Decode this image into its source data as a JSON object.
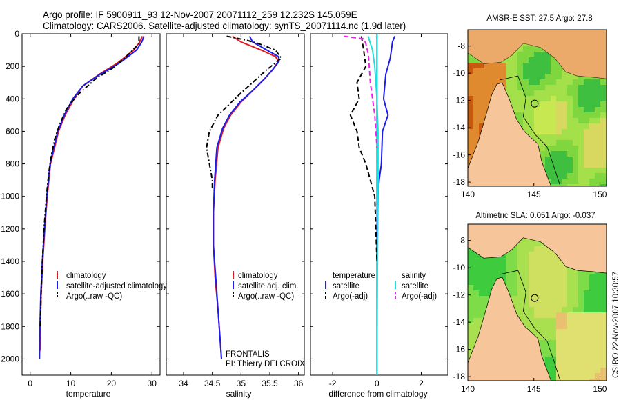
{
  "title_line1": "Argo profile: IF 5900911_93 12-Nov-2007 20071112_259 12.232S 145.059E",
  "title_line2": "Climatology: CARS2006. Satellite-adjusted climatology: synTS_20071114.nc (1.9d later)",
  "footer": "CSIRO 22-Nov-2007 10:30:57",
  "panel_notes": {
    "frontalis": "FRONTALIS",
    "pi": "PI: Thierry DELCROIX"
  },
  "colors": {
    "climatology": "#e31a1c",
    "satellite": "#1c1cf0",
    "argo": "#000000",
    "sal_satellite": "#22dddd",
    "sal_argo": "#ee22ee",
    "land": "#f6c59a"
  },
  "chart_data": [
    {
      "type": "line",
      "name": "temperature-profile",
      "xlabel": "temperature",
      "ylabel": "",
      "xlim": [
        -2,
        32
      ],
      "ylim": [
        2100,
        0
      ],
      "xticks": [
        "0",
        "10",
        "20",
        "30"
      ],
      "yticks": [
        "0",
        "200",
        "400",
        "600",
        "800",
        "1000",
        "1200",
        "1400",
        "1600",
        "1800",
        "2000"
      ],
      "legend": [
        "climatology",
        "satellite-adjusted climatology",
        "Argo(..raw -QC)"
      ],
      "series": [
        {
          "name": "climatology",
          "style": "solid",
          "color": "#e31a1c",
          "x": [
            27.6,
            27.0,
            25.5,
            21.5,
            17.0,
            13.0,
            10.8,
            8.6,
            7.0,
            6.0,
            5.0,
            4.2,
            3.6,
            3.1,
            2.7,
            2.5,
            2.4
          ],
          "y": [
            15,
            50,
            100,
            180,
            250,
            320,
            400,
            500,
            600,
            700,
            800,
            1000,
            1200,
            1400,
            1600,
            1800,
            1950
          ]
        },
        {
          "name": "satellite-adjusted climatology",
          "style": "solid",
          "color": "#1c1cf0",
          "x": [
            28.0,
            27.5,
            26.2,
            22.0,
            17.2,
            13.0,
            10.5,
            8.4,
            6.8,
            5.8,
            4.9,
            4.1,
            3.5,
            3.0,
            2.6,
            2.4,
            2.3
          ],
          "y": [
            15,
            50,
            100,
            180,
            250,
            320,
            400,
            500,
            600,
            700,
            800,
            1000,
            1200,
            1400,
            1600,
            1800,
            2000
          ]
        },
        {
          "name": "Argo(..raw -QC)",
          "style": "dashdot",
          "color": "#000000",
          "x": [
            26.8,
            26.8,
            24.5,
            21.0,
            16.0,
            11.5,
            9.0,
            7.2,
            6.0,
            5.2,
            4.6,
            4.0,
            3.4,
            3.0,
            2.7,
            2.5
          ],
          "y": [
            15,
            60,
            120,
            200,
            280,
            380,
            460,
            560,
            650,
            750,
            850,
            1000,
            1200,
            1400,
            1600,
            1800
          ]
        }
      ]
    },
    {
      "type": "line",
      "name": "salinity-profile",
      "xlabel": "salinity",
      "ylabel": "",
      "xlim": [
        33.7,
        36.1
      ],
      "ylim": [
        2100,
        0
      ],
      "xticks": [
        "34",
        "34.5",
        "35",
        "35.5",
        "36"
      ],
      "legend": [
        "climatology",
        "satellite adj. clim.",
        "Argo(..raw -QC)"
      ],
      "series": [
        {
          "name": "climatology",
          "style": "solid",
          "color": "#e31a1c",
          "x": [
            34.85,
            35.0,
            35.35,
            35.6,
            35.65,
            35.55,
            35.4,
            35.2,
            35.0,
            34.82,
            34.7,
            34.6,
            34.55,
            34.52,
            34.52,
            34.55,
            34.6,
            34.63,
            34.65,
            34.66
          ],
          "y": [
            15,
            50,
            100,
            140,
            170,
            220,
            280,
            350,
            420,
            500,
            580,
            700,
            900,
            1100,
            1300,
            1500,
            1700,
            1850,
            1950,
            2000
          ]
        },
        {
          "name": "satellite adj. clim.",
          "style": "solid",
          "color": "#1c1cf0",
          "x": [
            35.15,
            35.2,
            35.45,
            35.65,
            35.66,
            35.55,
            35.4,
            35.2,
            34.98,
            34.8,
            34.68,
            34.58,
            34.54,
            34.52,
            34.52,
            34.56,
            34.6,
            34.63,
            34.65,
            34.66
          ],
          "y": [
            15,
            50,
            100,
            140,
            170,
            220,
            280,
            350,
            420,
            500,
            580,
            700,
            900,
            1100,
            1300,
            1500,
            1700,
            1850,
            1950,
            2000
          ]
        },
        {
          "name": "Argo(..raw -QC)",
          "style": "dashdot",
          "color": "#000000",
          "x": [
            34.75,
            34.9,
            35.1,
            35.3,
            35.6,
            35.7,
            35.45,
            35.2,
            34.95,
            34.6,
            34.45,
            34.4,
            34.45,
            34.5,
            34.5
          ],
          "y": [
            15,
            25,
            40,
            60,
            100,
            150,
            220,
            300,
            380,
            500,
            600,
            700,
            800,
            900,
            950
          ]
        }
      ]
    },
    {
      "type": "line",
      "name": "difference-profile",
      "xlabel": "difference from climatology",
      "ylabel": "",
      "xlim": [
        -3,
        3.2
      ],
      "ylim": [
        2100,
        0
      ],
      "xticks": [
        "-2",
        "0",
        "2"
      ],
      "legend_titles": [
        "temperature",
        "salinity"
      ],
      "legend": [
        "satellite",
        "Argo(-adj)",
        "satellite",
        "Argo(-adj)"
      ],
      "series": [
        {
          "name": "temperature satellite",
          "style": "solid",
          "color": "#1c1cf0",
          "x": [
            0.8,
            0.7,
            0.65,
            0.6,
            0.4,
            0.3,
            0.5,
            0.25,
            0.2,
            0.1,
            0.05,
            0.02,
            0
          ],
          "y": [
            15,
            50,
            100,
            150,
            250,
            400,
            500,
            600,
            800,
            900,
            1000,
            1200,
            1400
          ]
        },
        {
          "name": "temperature Argo(-adj)",
          "style": "dashed",
          "color": "#000000",
          "x": [
            -0.7,
            -0.6,
            -0.5,
            -0.9,
            -0.8,
            -1.2,
            -0.9,
            -0.8,
            -0.5,
            -0.3,
            -0.1,
            -0.05,
            0
          ],
          "y": [
            15,
            100,
            200,
            300,
            400,
            500,
            600,
            700,
            800,
            900,
            1000,
            1200,
            1400
          ]
        },
        {
          "name": "salinity satellite",
          "style": "solid",
          "color": "#22dddd",
          "x": [
            -0.4,
            -0.2,
            -0.1,
            0,
            0.05,
            0.05,
            0.05,
            0.02,
            0
          ],
          "y": [
            15,
            100,
            200,
            400,
            600,
            800,
            1000,
            1500,
            2000
          ]
        },
        {
          "name": "salinity Argo(-adj)",
          "style": "dashed",
          "color": "#ee22ee",
          "x": [
            -1.5,
            -0.6,
            -0.5,
            -0.4,
            -0.35,
            -0.3,
            -0.2,
            -0.1,
            0
          ],
          "y": [
            15,
            30,
            60,
            120,
            200,
            300,
            400,
            500,
            700
          ]
        }
      ]
    },
    {
      "type": "heatmap",
      "name": "sst-map",
      "title": "AMSR-E SST: 27.5 Argo: 27.8",
      "xlim": [
        140,
        150.5
      ],
      "ylim": [
        -18.3,
        -6.8
      ],
      "xticks": [
        "140",
        "145",
        "150"
      ],
      "yticks": [
        "-8",
        "-10",
        "-12",
        "-14",
        "-16",
        "-18"
      ],
      "marker": {
        "lon": 145.06,
        "lat": -12.23
      }
    },
    {
      "type": "heatmap",
      "name": "sla-map",
      "title": "Altimetric SLA: 0.051 Argo: -0.037",
      "xlim": [
        140,
        150.5
      ],
      "ylim": [
        -18.3,
        -6.8
      ],
      "xticks": [
        "140",
        "145",
        "150"
      ],
      "yticks": [
        "-8",
        "-10",
        "-12",
        "-14",
        "-16",
        "-18"
      ],
      "marker": {
        "lon": 145.06,
        "lat": -12.23
      }
    }
  ]
}
